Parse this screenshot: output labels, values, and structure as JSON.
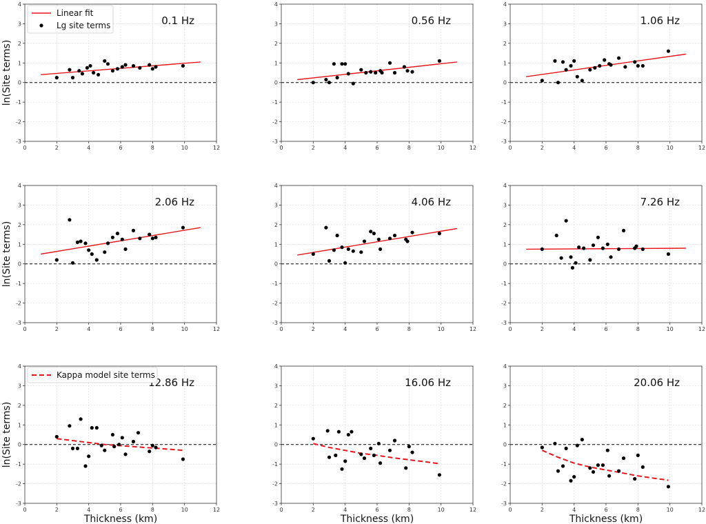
{
  "figure": {
    "xlabel": "Thickness (km)",
    "ylabel": "ln(Site terms)",
    "colors": {
      "fit": "#e8141b",
      "point": "#000000",
      "axis": "#333333",
      "grid": "#d9d9d9",
      "zero_line": "#000000"
    }
  },
  "chart_data": [
    {
      "type": "scatter",
      "title": "0.1 Hz",
      "xlabel": "",
      "ylabel": "ln(Site terms)",
      "xlim": [
        0,
        12
      ],
      "ylim": [
        -3,
        4
      ],
      "xticks": [
        "0",
        "2",
        "4",
        "6",
        "8",
        "10",
        "12"
      ],
      "yticks": [
        "-3",
        "-2",
        "-1",
        "0",
        "1",
        "2",
        "3",
        "4"
      ],
      "grid": true,
      "legend_position": "top-left",
      "legend": [
        "Linear fit",
        "Lg site terms"
      ],
      "fit": {
        "name": "Linear fit",
        "style": "solid",
        "x": [
          1,
          11
        ],
        "y": [
          0.4,
          1.05
        ]
      },
      "series": [
        {
          "name": "Lg site terms",
          "x": [
            2.0,
            2.8,
            3.0,
            3.4,
            3.6,
            3.9,
            4.1,
            4.3,
            4.6,
            5.0,
            5.2,
            5.5,
            5.8,
            6.1,
            6.3,
            6.8,
            7.2,
            7.8,
            8.0,
            8.2,
            9.9
          ],
          "y": [
            0.25,
            0.65,
            0.25,
            0.6,
            0.45,
            0.75,
            0.85,
            0.5,
            0.4,
            1.1,
            0.95,
            0.6,
            0.7,
            0.8,
            0.9,
            0.85,
            0.75,
            0.9,
            0.7,
            0.8,
            0.85
          ]
        }
      ]
    },
    {
      "type": "scatter",
      "title": "0.56 Hz",
      "xlabel": "",
      "ylabel": "",
      "xlim": [
        0,
        12
      ],
      "ylim": [
        -3,
        4
      ],
      "xticks": [
        "0",
        "2",
        "4",
        "6",
        "8",
        "10",
        "12"
      ],
      "yticks": [
        "-3",
        "-2",
        "-1",
        "0",
        "1",
        "2",
        "3",
        "4"
      ],
      "grid": true,
      "fit": {
        "name": "Linear fit",
        "style": "solid",
        "x": [
          1,
          11
        ],
        "y": [
          0.15,
          1.05
        ]
      },
      "series": [
        {
          "name": "Lg site terms",
          "x": [
            2.0,
            2.8,
            3.0,
            3.3,
            3.5,
            3.8,
            4.0,
            4.2,
            4.5,
            5.0,
            5.3,
            5.6,
            5.9,
            6.2,
            6.3,
            6.8,
            7.1,
            7.7,
            7.9,
            8.2,
            9.9
          ],
          "y": [
            0.0,
            0.15,
            0.0,
            0.95,
            0.25,
            0.95,
            0.95,
            0.45,
            -0.05,
            0.65,
            0.5,
            0.55,
            0.5,
            0.6,
            0.5,
            1.0,
            0.5,
            0.8,
            0.6,
            0.55,
            1.1
          ]
        }
      ]
    },
    {
      "type": "scatter",
      "title": "1.06 Hz",
      "xlabel": "",
      "ylabel": "",
      "xlim": [
        0,
        12
      ],
      "ylim": [
        -3,
        4
      ],
      "xticks": [
        "0",
        "2",
        "4",
        "6",
        "8",
        "10",
        "12"
      ],
      "yticks": [
        "-3",
        "-2",
        "-1",
        "0",
        "1",
        "2",
        "3",
        "4"
      ],
      "grid": true,
      "fit": {
        "name": "Linear fit",
        "style": "solid",
        "x": [
          1,
          11
        ],
        "y": [
          0.3,
          1.45
        ]
      },
      "series": [
        {
          "name": "Lg site terms",
          "x": [
            2.0,
            2.8,
            3.0,
            3.3,
            3.5,
            3.8,
            4.0,
            4.2,
            4.5,
            5.0,
            5.3,
            5.6,
            5.9,
            6.2,
            6.3,
            6.8,
            7.2,
            7.8,
            8.0,
            8.3,
            9.9
          ],
          "y": [
            0.1,
            1.1,
            0.0,
            1.05,
            0.65,
            0.85,
            1.1,
            0.3,
            0.1,
            0.65,
            0.75,
            0.85,
            1.15,
            0.95,
            0.9,
            1.25,
            0.8,
            1.05,
            0.85,
            0.85,
            1.6
          ]
        }
      ]
    },
    {
      "type": "scatter",
      "title": "2.06 Hz",
      "xlabel": "",
      "ylabel": "ln(Site terms)",
      "xlim": [
        0,
        12
      ],
      "ylim": [
        -3,
        4
      ],
      "xticks": [
        "0",
        "2",
        "4",
        "6",
        "8",
        "10",
        "12"
      ],
      "yticks": [
        "-3",
        "-2",
        "-1",
        "0",
        "1",
        "2",
        "3",
        "4"
      ],
      "grid": true,
      "fit": {
        "name": "Linear fit",
        "style": "solid",
        "x": [
          1,
          11
        ],
        "y": [
          0.5,
          1.85
        ]
      },
      "series": [
        {
          "name": "Lg site terms",
          "x": [
            2.0,
            2.8,
            3.0,
            3.3,
            3.5,
            3.8,
            4.0,
            4.2,
            4.5,
            5.0,
            5.2,
            5.5,
            5.8,
            6.1,
            6.3,
            6.8,
            7.2,
            7.8,
            8.0,
            8.2,
            9.9
          ],
          "y": [
            0.2,
            2.25,
            0.05,
            1.1,
            1.15,
            1.05,
            0.7,
            0.5,
            0.2,
            0.6,
            1.05,
            1.35,
            1.55,
            1.25,
            0.75,
            1.7,
            1.3,
            1.5,
            1.3,
            1.35,
            1.85
          ]
        }
      ]
    },
    {
      "type": "scatter",
      "title": "4.06 Hz",
      "xlabel": "",
      "ylabel": "",
      "xlim": [
        0,
        12
      ],
      "ylim": [
        -3,
        4
      ],
      "xticks": [
        "0",
        "2",
        "4",
        "6",
        "8",
        "10",
        "12"
      ],
      "yticks": [
        "-3",
        "-2",
        "-1",
        "0",
        "1",
        "2",
        "3",
        "4"
      ],
      "grid": true,
      "fit": {
        "name": "Linear fit",
        "style": "solid",
        "x": [
          1,
          11
        ],
        "y": [
          0.45,
          1.8
        ]
      },
      "series": [
        {
          "name": "Lg site terms",
          "x": [
            2.0,
            2.8,
            3.0,
            3.3,
            3.5,
            3.8,
            4.0,
            4.2,
            4.5,
            5.0,
            5.2,
            5.6,
            5.8,
            6.1,
            6.2,
            6.8,
            7.1,
            7.8,
            7.9,
            8.2,
            9.9
          ],
          "y": [
            0.5,
            1.85,
            0.15,
            0.7,
            1.45,
            0.85,
            0.05,
            0.75,
            0.65,
            0.6,
            1.15,
            1.65,
            1.55,
            1.25,
            0.75,
            1.3,
            1.45,
            1.25,
            1.15,
            1.6,
            1.55
          ]
        }
      ]
    },
    {
      "type": "scatter",
      "title": "7.26 Hz",
      "xlabel": "",
      "ylabel": "",
      "xlim": [
        0,
        12
      ],
      "ylim": [
        -3,
        4
      ],
      "xticks": [
        "0",
        "2",
        "4",
        "6",
        "8",
        "10",
        "12"
      ],
      "yticks": [
        "-3",
        "-2",
        "-1",
        "0",
        "1",
        "2",
        "3",
        "4"
      ],
      "grid": true,
      "fit": {
        "name": "Linear fit",
        "style": "solid",
        "x": [
          1,
          11
        ],
        "y": [
          0.75,
          0.8
        ]
      },
      "series": [
        {
          "name": "Lg site terms",
          "x": [
            2.0,
            2.9,
            3.2,
            3.5,
            3.8,
            3.9,
            4.1,
            4.3,
            4.6,
            5.0,
            5.2,
            5.5,
            5.8,
            6.1,
            6.3,
            6.8,
            7.1,
            7.8,
            7.9,
            8.3,
            9.9
          ],
          "y": [
            0.75,
            1.45,
            0.3,
            2.2,
            0.35,
            -0.2,
            0.05,
            0.85,
            0.8,
            0.2,
            0.95,
            1.35,
            0.8,
            1.0,
            0.35,
            0.75,
            1.7,
            0.8,
            0.9,
            0.75,
            0.5
          ]
        }
      ]
    },
    {
      "type": "scatter",
      "title": "12.86 Hz",
      "xlabel": "Thickness (km)",
      "ylabel": "ln(Site terms)",
      "xlim": [
        0,
        12
      ],
      "ylim": [
        -3,
        4
      ],
      "xticks": [
        "0",
        "2",
        "4",
        "6",
        "8",
        "10",
        "12"
      ],
      "yticks": [
        "-3",
        "-2",
        "-1",
        "0",
        "1",
        "2",
        "3",
        "4"
      ],
      "grid": true,
      "legend_position": "top-left",
      "legend": [
        "Kappa model site terms"
      ],
      "fit": {
        "name": "Kappa model site terms",
        "style": "dashed",
        "x": [
          2,
          3,
          4,
          5,
          6,
          7,
          8,
          9,
          9.9
        ],
        "y": [
          0.3,
          0.2,
          0.1,
          0.0,
          -0.06,
          -0.12,
          -0.18,
          -0.24,
          -0.3
        ]
      },
      "series": [
        {
          "name": "Lg site terms",
          "x": [
            2.0,
            2.8,
            3.0,
            3.3,
            3.5,
            3.8,
            4.0,
            4.2,
            4.5,
            4.8,
            5.0,
            5.5,
            5.6,
            5.9,
            6.1,
            6.3,
            6.8,
            7.1,
            7.8,
            8.0,
            8.2,
            9.9
          ],
          "y": [
            0.4,
            0.95,
            -0.2,
            -0.2,
            1.3,
            -1.1,
            -0.6,
            0.85,
            0.85,
            -0.05,
            -0.3,
            0.5,
            -0.1,
            0.0,
            0.35,
            -0.5,
            0.15,
            0.6,
            -0.35,
            -0.05,
            -0.15,
            -0.75
          ]
        }
      ]
    },
    {
      "type": "scatter",
      "title": "16.06 Hz",
      "xlabel": "Thickness (km)",
      "ylabel": "",
      "xlim": [
        0,
        12
      ],
      "ylim": [
        -3,
        4
      ],
      "xticks": [
        "0",
        "2",
        "4",
        "6",
        "8",
        "10",
        "12"
      ],
      "yticks": [
        "-3",
        "-2",
        "-1",
        "0",
        "1",
        "2",
        "3",
        "4"
      ],
      "grid": true,
      "fit": {
        "name": "Kappa model site terms",
        "style": "dashed",
        "x": [
          2,
          3,
          4,
          5,
          6,
          7,
          8,
          9,
          9.9
        ],
        "y": [
          0.05,
          -0.15,
          -0.3,
          -0.45,
          -0.55,
          -0.68,
          -0.78,
          -0.88,
          -0.98
        ]
      },
      "series": [
        {
          "name": "Lg site terms",
          "x": [
            2.0,
            2.9,
            3.0,
            3.4,
            3.6,
            3.8,
            4.0,
            4.2,
            4.4,
            5.0,
            5.2,
            5.6,
            5.8,
            6.1,
            6.2,
            6.8,
            7.1,
            7.8,
            8.0,
            8.2,
            9.9
          ],
          "y": [
            0.3,
            0.7,
            -0.65,
            -0.55,
            0.65,
            -1.25,
            -0.85,
            0.5,
            0.65,
            -0.5,
            -0.7,
            -0.2,
            -0.55,
            0.05,
            -0.95,
            -0.3,
            0.2,
            -1.2,
            -0.1,
            -0.4,
            -1.55
          ]
        }
      ]
    },
    {
      "type": "scatter",
      "title": "20.06 Hz",
      "xlabel": "Thickness (km)",
      "ylabel": "",
      "xlim": [
        0,
        12
      ],
      "ylim": [
        -3,
        4
      ],
      "xticks": [
        "0",
        "2",
        "4",
        "6",
        "8",
        "10",
        "12"
      ],
      "yticks": [
        "-3",
        "-2",
        "-1",
        "0",
        "1",
        "2",
        "3",
        "4"
      ],
      "grid": true,
      "fit": {
        "name": "Kappa model site terms",
        "style": "dashed",
        "x": [
          2,
          3,
          4,
          5,
          6,
          7,
          8,
          9,
          9.9
        ],
        "y": [
          -0.3,
          -0.65,
          -0.95,
          -1.15,
          -1.3,
          -1.45,
          -1.6,
          -1.72,
          -1.82
        ]
      },
      "series": [
        {
          "name": "Lg site terms",
          "x": [
            2.0,
            2.8,
            3.0,
            3.3,
            3.5,
            3.8,
            4.0,
            4.2,
            4.5,
            5.0,
            5.2,
            5.5,
            5.8,
            6.1,
            6.2,
            6.8,
            7.1,
            7.8,
            8.0,
            8.3,
            9.9
          ],
          "y": [
            -0.15,
            0.05,
            -1.35,
            -1.1,
            -0.2,
            -1.85,
            -1.65,
            -0.05,
            0.25,
            -1.2,
            -1.4,
            -1.05,
            -1.05,
            -0.3,
            -1.6,
            -1.35,
            -0.7,
            -1.75,
            -0.55,
            -1.15,
            -2.15
          ]
        }
      ]
    }
  ]
}
